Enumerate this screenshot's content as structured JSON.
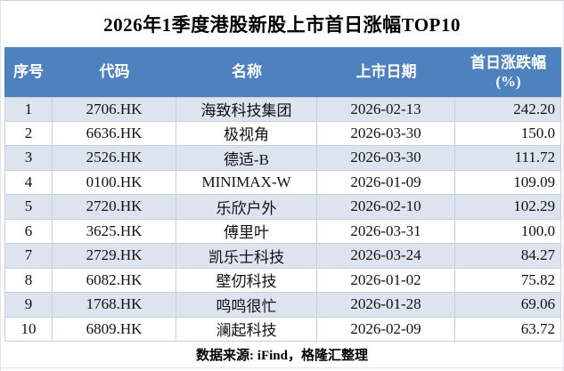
{
  "chart_data": {
    "type": "table",
    "title": "2026年1季度港股新股上市首日涨幅TOP10",
    "columns": [
      "序号",
      "代码",
      "名称",
      "上市日期",
      "首日涨跌幅(%)"
    ],
    "rows": [
      {
        "rank": "1",
        "code": "2706.HK",
        "name": "海致科技集团",
        "date": "2026-02-13",
        "change": "242.20"
      },
      {
        "rank": "2",
        "code": "6636.HK",
        "name": "极视角",
        "date": "2026-03-30",
        "change": "150.0"
      },
      {
        "rank": "3",
        "code": "2526.HK",
        "name": "德适-B",
        "date": "2026-03-30",
        "change": "111.72"
      },
      {
        "rank": "4",
        "code": "0100.HK",
        "name": "MINIMAX-W",
        "date": "2026-01-09",
        "change": "109.09"
      },
      {
        "rank": "5",
        "code": "2720.HK",
        "name": "乐欣户外",
        "date": "2026-02-10",
        "change": "102.29"
      },
      {
        "rank": "6",
        "code": "3625.HK",
        "name": "傅里叶",
        "date": "2026-03-31",
        "change": "100.0"
      },
      {
        "rank": "7",
        "code": "2729.HK",
        "name": "凯乐士科技",
        "date": "2026-03-24",
        "change": "84.27"
      },
      {
        "rank": "8",
        "code": "6082.HK",
        "name": "壁仞科技",
        "date": "2026-01-02",
        "change": "75.82"
      },
      {
        "rank": "9",
        "code": "1768.HK",
        "name": "鸣鸣很忙",
        "date": "2026-01-28",
        "change": "69.06"
      },
      {
        "rank": "10",
        "code": "6809.HK",
        "name": "澜起科技",
        "date": "2026-02-09",
        "change": "63.72"
      }
    ],
    "source_note": "数据来源: iFind，格隆汇整理"
  },
  "header": {
    "rank": "序号",
    "code": "代码",
    "name": "名称",
    "date": "上市日期",
    "change_line1": "首日涨跌幅",
    "change_line2": "(%)"
  },
  "footer": {
    "source": "数据来源: iFind，格隆汇整理"
  },
  "colors": {
    "header_bg": "#4e81bd",
    "header_text": "#ffffff",
    "stripe_row_bg": "#dce4ef",
    "plain_row_bg": "#ffffff",
    "cell_border": "#c6cfdd",
    "title_text": "#000000"
  }
}
